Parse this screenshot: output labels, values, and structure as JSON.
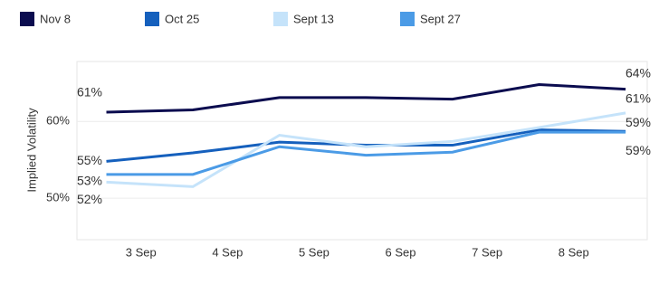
{
  "chart_data": {
    "type": "line",
    "y_label": "Implied Volatility",
    "x": [
      2.6,
      3.6,
      4.6,
      5.6,
      6.6,
      7.6,
      8.6
    ],
    "xlim": [
      2.26,
      8.85
    ],
    "xticks": [
      {
        "value": 3,
        "label": "3 Sep"
      },
      {
        "value": 4,
        "label": "4 Sep"
      },
      {
        "value": 5,
        "label": "5 Sep"
      },
      {
        "value": 6,
        "label": "6 Sep"
      },
      {
        "value": 7,
        "label": "7 Sep"
      },
      {
        "value": 8,
        "label": "8 Sep"
      }
    ],
    "ylim": [
      44.6,
      67.8
    ],
    "yticks": [
      {
        "value": 50,
        "label": "50%"
      },
      {
        "value": 60,
        "label": "60%"
      }
    ],
    "grid": true,
    "series": [
      {
        "name": "Nov 8",
        "color": "#0b0c4f",
        "values": [
          61.2,
          61.5,
          63.1,
          63.1,
          62.9,
          64.8,
          64.2
        ],
        "value_labels": [
          "61%",
          null,
          null,
          null,
          null,
          null,
          "64%"
        ]
      },
      {
        "name": "Oct 25",
        "color": "#1560bd",
        "values": [
          54.8,
          55.9,
          57.3,
          56.9,
          56.9,
          58.9,
          58.7
        ],
        "value_labels": [
          "55%",
          null,
          null,
          null,
          null,
          null,
          "59%"
        ]
      },
      {
        "name": "Sept 13",
        "color": "#c5e3fa",
        "values": [
          52.1,
          51.5,
          58.2,
          56.7,
          57.4,
          59.2,
          61.1
        ],
        "value_labels": [
          "52%",
          null,
          null,
          null,
          null,
          null,
          "61%"
        ]
      },
      {
        "name": "Sept 27",
        "color": "#4b9be6",
        "values": [
          53.1,
          53.1,
          56.7,
          55.6,
          56.0,
          58.6,
          58.6
        ],
        "value_labels": [
          "53%",
          null,
          null,
          null,
          null,
          null,
          "59%"
        ]
      }
    ]
  }
}
